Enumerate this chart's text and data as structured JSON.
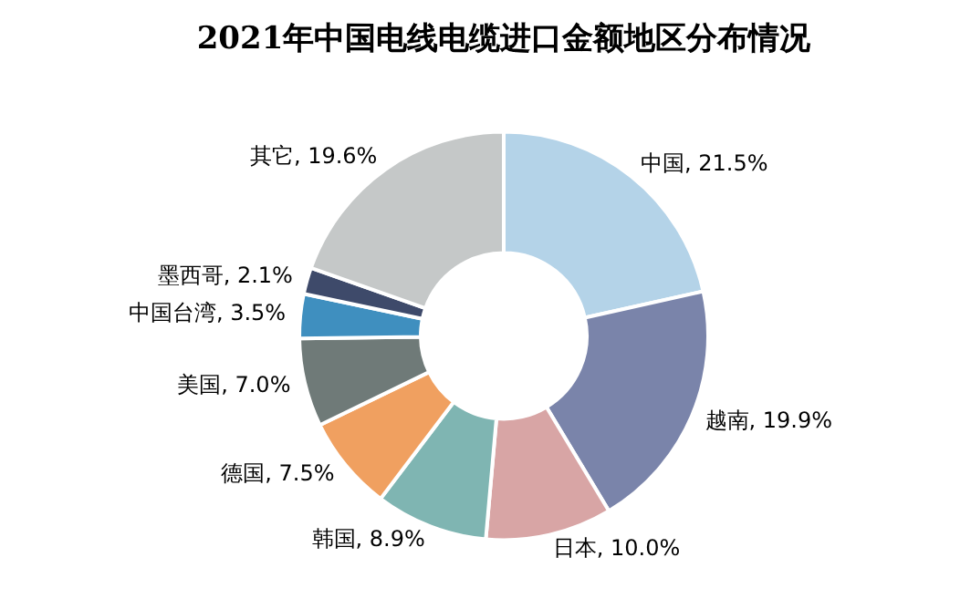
{
  "chart_data": {
    "type": "donut",
    "title": "2021年中国电线电缆进口金额地区分布情况",
    "categories": [
      "中国",
      "越南",
      "日本",
      "韩国",
      "德国",
      "美国",
      "中国台湾",
      "墨西哥",
      "其它"
    ],
    "values": [
      21.5,
      19.9,
      10.0,
      8.9,
      7.5,
      7.0,
      3.5,
      2.1,
      19.6
    ],
    "value_labels": [
      "21.5%",
      "19.9%",
      "10.0%",
      "8.9%",
      "7.5%",
      "7.0%",
      "3.5%",
      "2.1%",
      "19.6%"
    ],
    "colors": [
      "#b4d3e8",
      "#7a84aa",
      "#d8a5a5",
      "#7fb5b2",
      "#f0a060",
      "#6f7a78",
      "#3f8fbf",
      "#3e4a6a",
      "#c5c8c8"
    ],
    "legend": false
  }
}
